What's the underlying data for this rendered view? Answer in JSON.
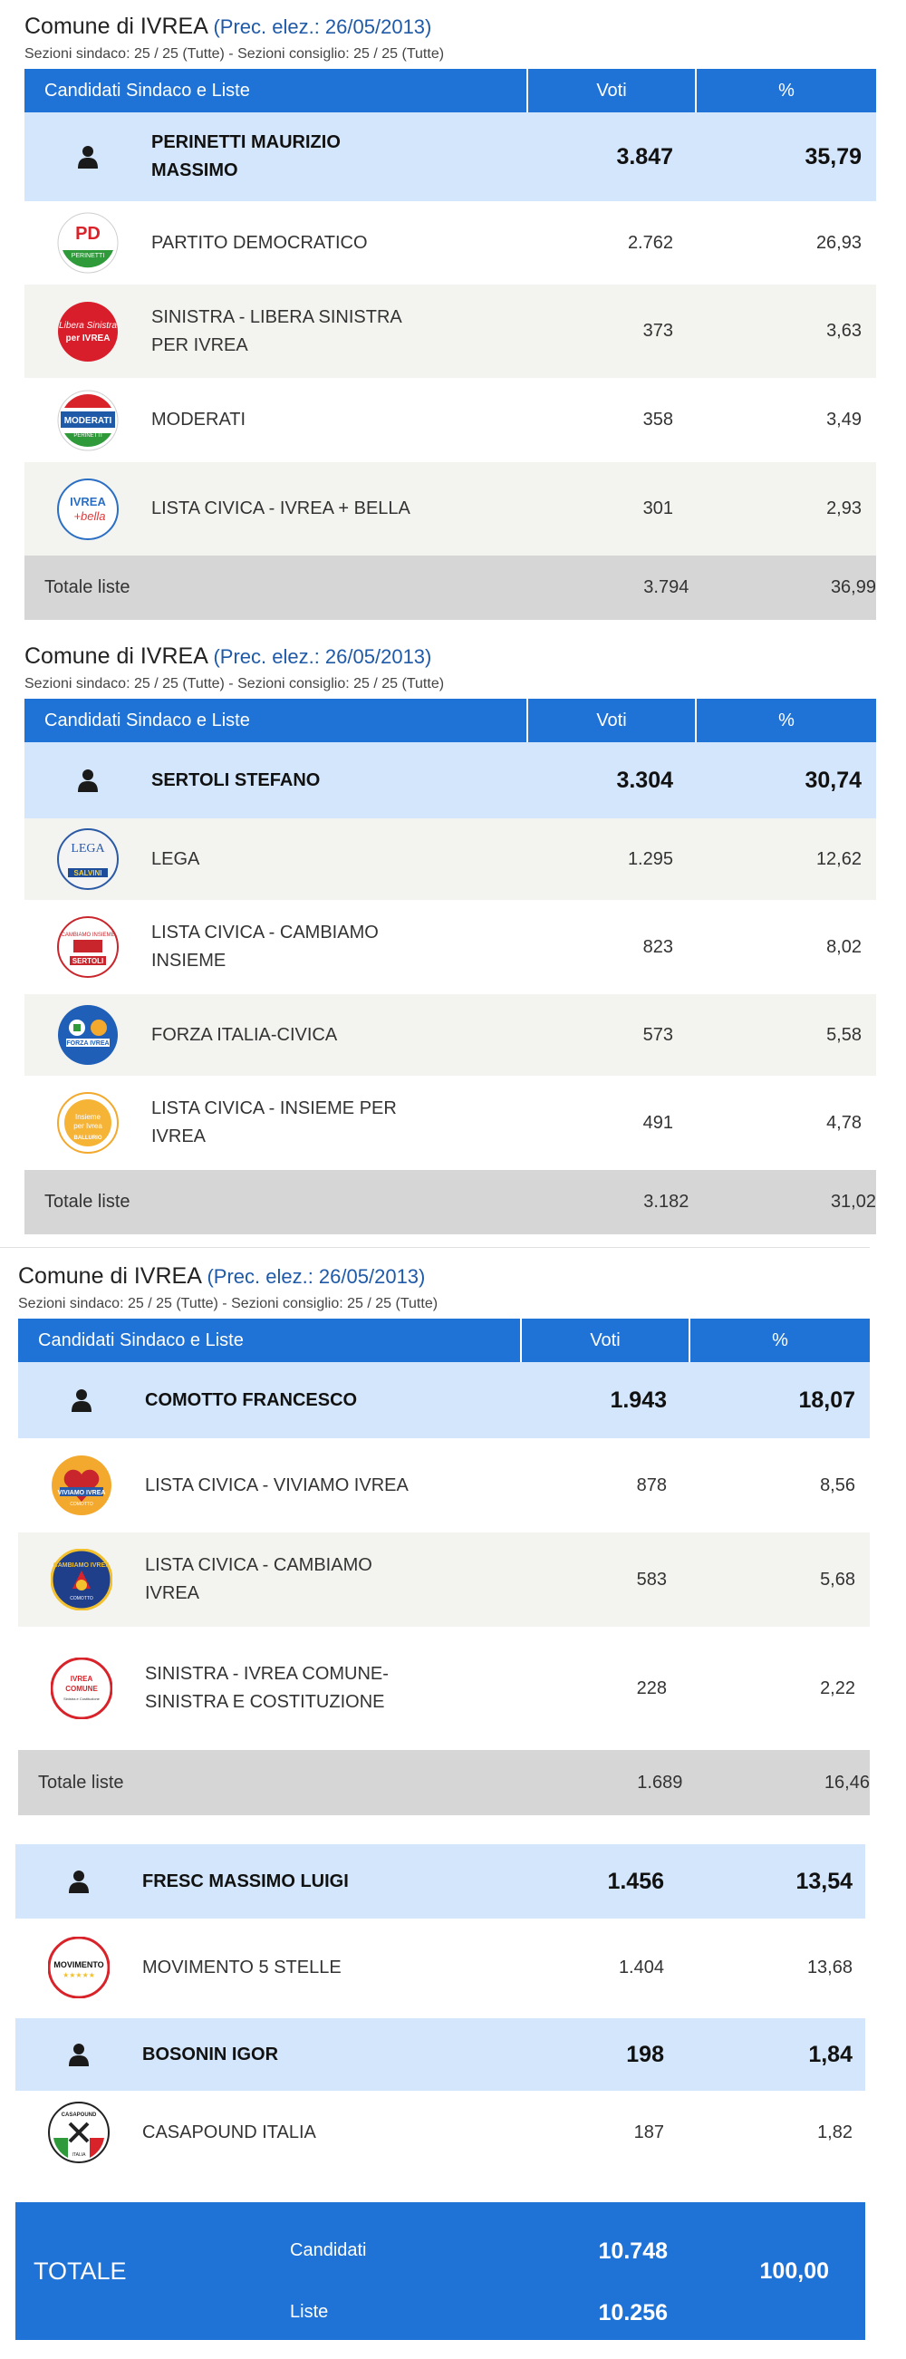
{
  "sections": [
    {
      "title_main": "Comune di IVREA",
      "title_prec": "(Prec. elez.: 26/05/2013)",
      "subtitle": "Sezioni sindaco: 25 / 25 (Tutte) - Sezioni consiglio: 25 / 25 (Tutte)",
      "header": {
        "col1": "Candidati Sindaco e Liste",
        "col2": "Voti",
        "col3": "%"
      },
      "candidate": {
        "name": "PERINETTI MAURIZIO MASSIMO",
        "votes": "3.847",
        "pct": "35,79"
      },
      "lists": [
        {
          "name": "PARTITO DEMOCRATICO",
          "votes": "2.762",
          "pct": "26,93",
          "logo_text": "PD",
          "logo_sub": "PERINETTI"
        },
        {
          "name": "SINISTRA - LIBERA SINISTRA PER IVREA",
          "votes": "373",
          "pct": "3,63",
          "logo_text": "Libera Sinistra",
          "logo_sub": "per IVREA"
        },
        {
          "name": "MODERATI",
          "votes": "358",
          "pct": "3,49",
          "logo_text": "MODERATI",
          "logo_sub": "PERINETTI"
        },
        {
          "name": "LISTA CIVICA - IVREA + BELLA",
          "votes": "301",
          "pct": "2,93",
          "logo_text": "IVREA",
          "logo_sub": "+bella"
        }
      ],
      "total": {
        "label": "Totale liste",
        "votes": "3.794",
        "pct": "36,99"
      }
    },
    {
      "title_main": "Comune di IVREA",
      "title_prec": "(Prec. elez.: 26/05/2013)",
      "subtitle": "Sezioni sindaco: 25 / 25 (Tutte) - Sezioni consiglio: 25 / 25 (Tutte)",
      "header": {
        "col1": "Candidati Sindaco e Liste",
        "col2": "Voti",
        "col3": "%"
      },
      "candidate": {
        "name": "SERTOLI STEFANO",
        "votes": "3.304",
        "pct": "30,74"
      },
      "lists": [
        {
          "name": "LEGA",
          "votes": "1.295",
          "pct": "12,62",
          "logo_text": "LEGA",
          "logo_sub": "SALVINI"
        },
        {
          "name": "LISTA CIVICA - CAMBIAMO INSIEME",
          "votes": "823",
          "pct": "8,02",
          "logo_text": "CAMBIAMO INSIEME",
          "logo_sub": "SERTOLI"
        },
        {
          "name": "FORZA ITALIA-CIVICA",
          "votes": "573",
          "pct": "5,58",
          "logo_text": "FORZA IVREA",
          "logo_sub": ""
        },
        {
          "name": "LISTA CIVICA - INSIEME PER IVREA",
          "votes": "491",
          "pct": "4,78",
          "logo_text": "Insieme per Ivrea",
          "logo_sub": "BALLURIO"
        }
      ],
      "total": {
        "label": "Totale liste",
        "votes": "3.182",
        "pct": "31,02"
      }
    },
    {
      "title_main": "Comune di IVREA",
      "title_prec": "(Prec. elez.: 26/05/2013)",
      "subtitle": "Sezioni sindaco: 25 / 25 (Tutte) - Sezioni consiglio: 25 / 25 (Tutte)",
      "header": {
        "col1": "Candidati Sindaco e Liste",
        "col2": "Voti",
        "col3": "%"
      },
      "candidate": {
        "name": "COMOTTO FRANCESCO",
        "votes": "1.943",
        "pct": "18,07"
      },
      "lists": [
        {
          "name": "LISTA CIVICA - VIVIAMO IVREA",
          "votes": "878",
          "pct": "8,56",
          "logo_text": "VIVIAMO IVREA",
          "logo_sub": "COMOTTO"
        },
        {
          "name": "LISTA CIVICA - CAMBIAMO IVREA",
          "votes": "583",
          "pct": "5,68",
          "logo_text": "CAMBIAMO IVREA",
          "logo_sub": "COMOTTO"
        },
        {
          "name": "SINISTRA - IVREA COMUNE-SINISTRA E COSTITUZIONE",
          "votes": "228",
          "pct": "2,22",
          "logo_text": "IVREA COMUNE",
          "logo_sub": "Sinistra e Costituzione"
        }
      ],
      "total": {
        "label": "Totale liste",
        "votes": "1.689",
        "pct": "16,46"
      }
    }
  ],
  "others": [
    {
      "candidate": {
        "name": "FRESC MASSIMO LUIGI",
        "votes": "1.456",
        "pct": "13,54"
      },
      "list": {
        "name": "MOVIMENTO 5 STELLE",
        "votes": "1.404",
        "pct": "13,68",
        "logo_text": "MOVIMENTO",
        "logo_sub": "★★★★★"
      }
    },
    {
      "candidate": {
        "name": "BOSONIN IGOR",
        "votes": "198",
        "pct": "1,84"
      },
      "list": {
        "name": "CASAPOUND ITALIA",
        "votes": "187",
        "pct": "1,82",
        "logo_text": "CASAPOUND",
        "logo_sub": "ITALIA"
      }
    }
  ],
  "grand_total": {
    "label": "TOTALE",
    "candidates_label": "Candidati",
    "candidates_votes": "10.748",
    "lists_label": "Liste",
    "lists_votes": "10.256",
    "pct": "100,00"
  },
  "icons": {
    "candidate": "person-icon"
  },
  "colors": {
    "header_blue": "#1f72d6",
    "candidate_row": "#d4e6fb",
    "total_row": "#d6d6d6",
    "prec_blue": "#1f5aa8"
  }
}
